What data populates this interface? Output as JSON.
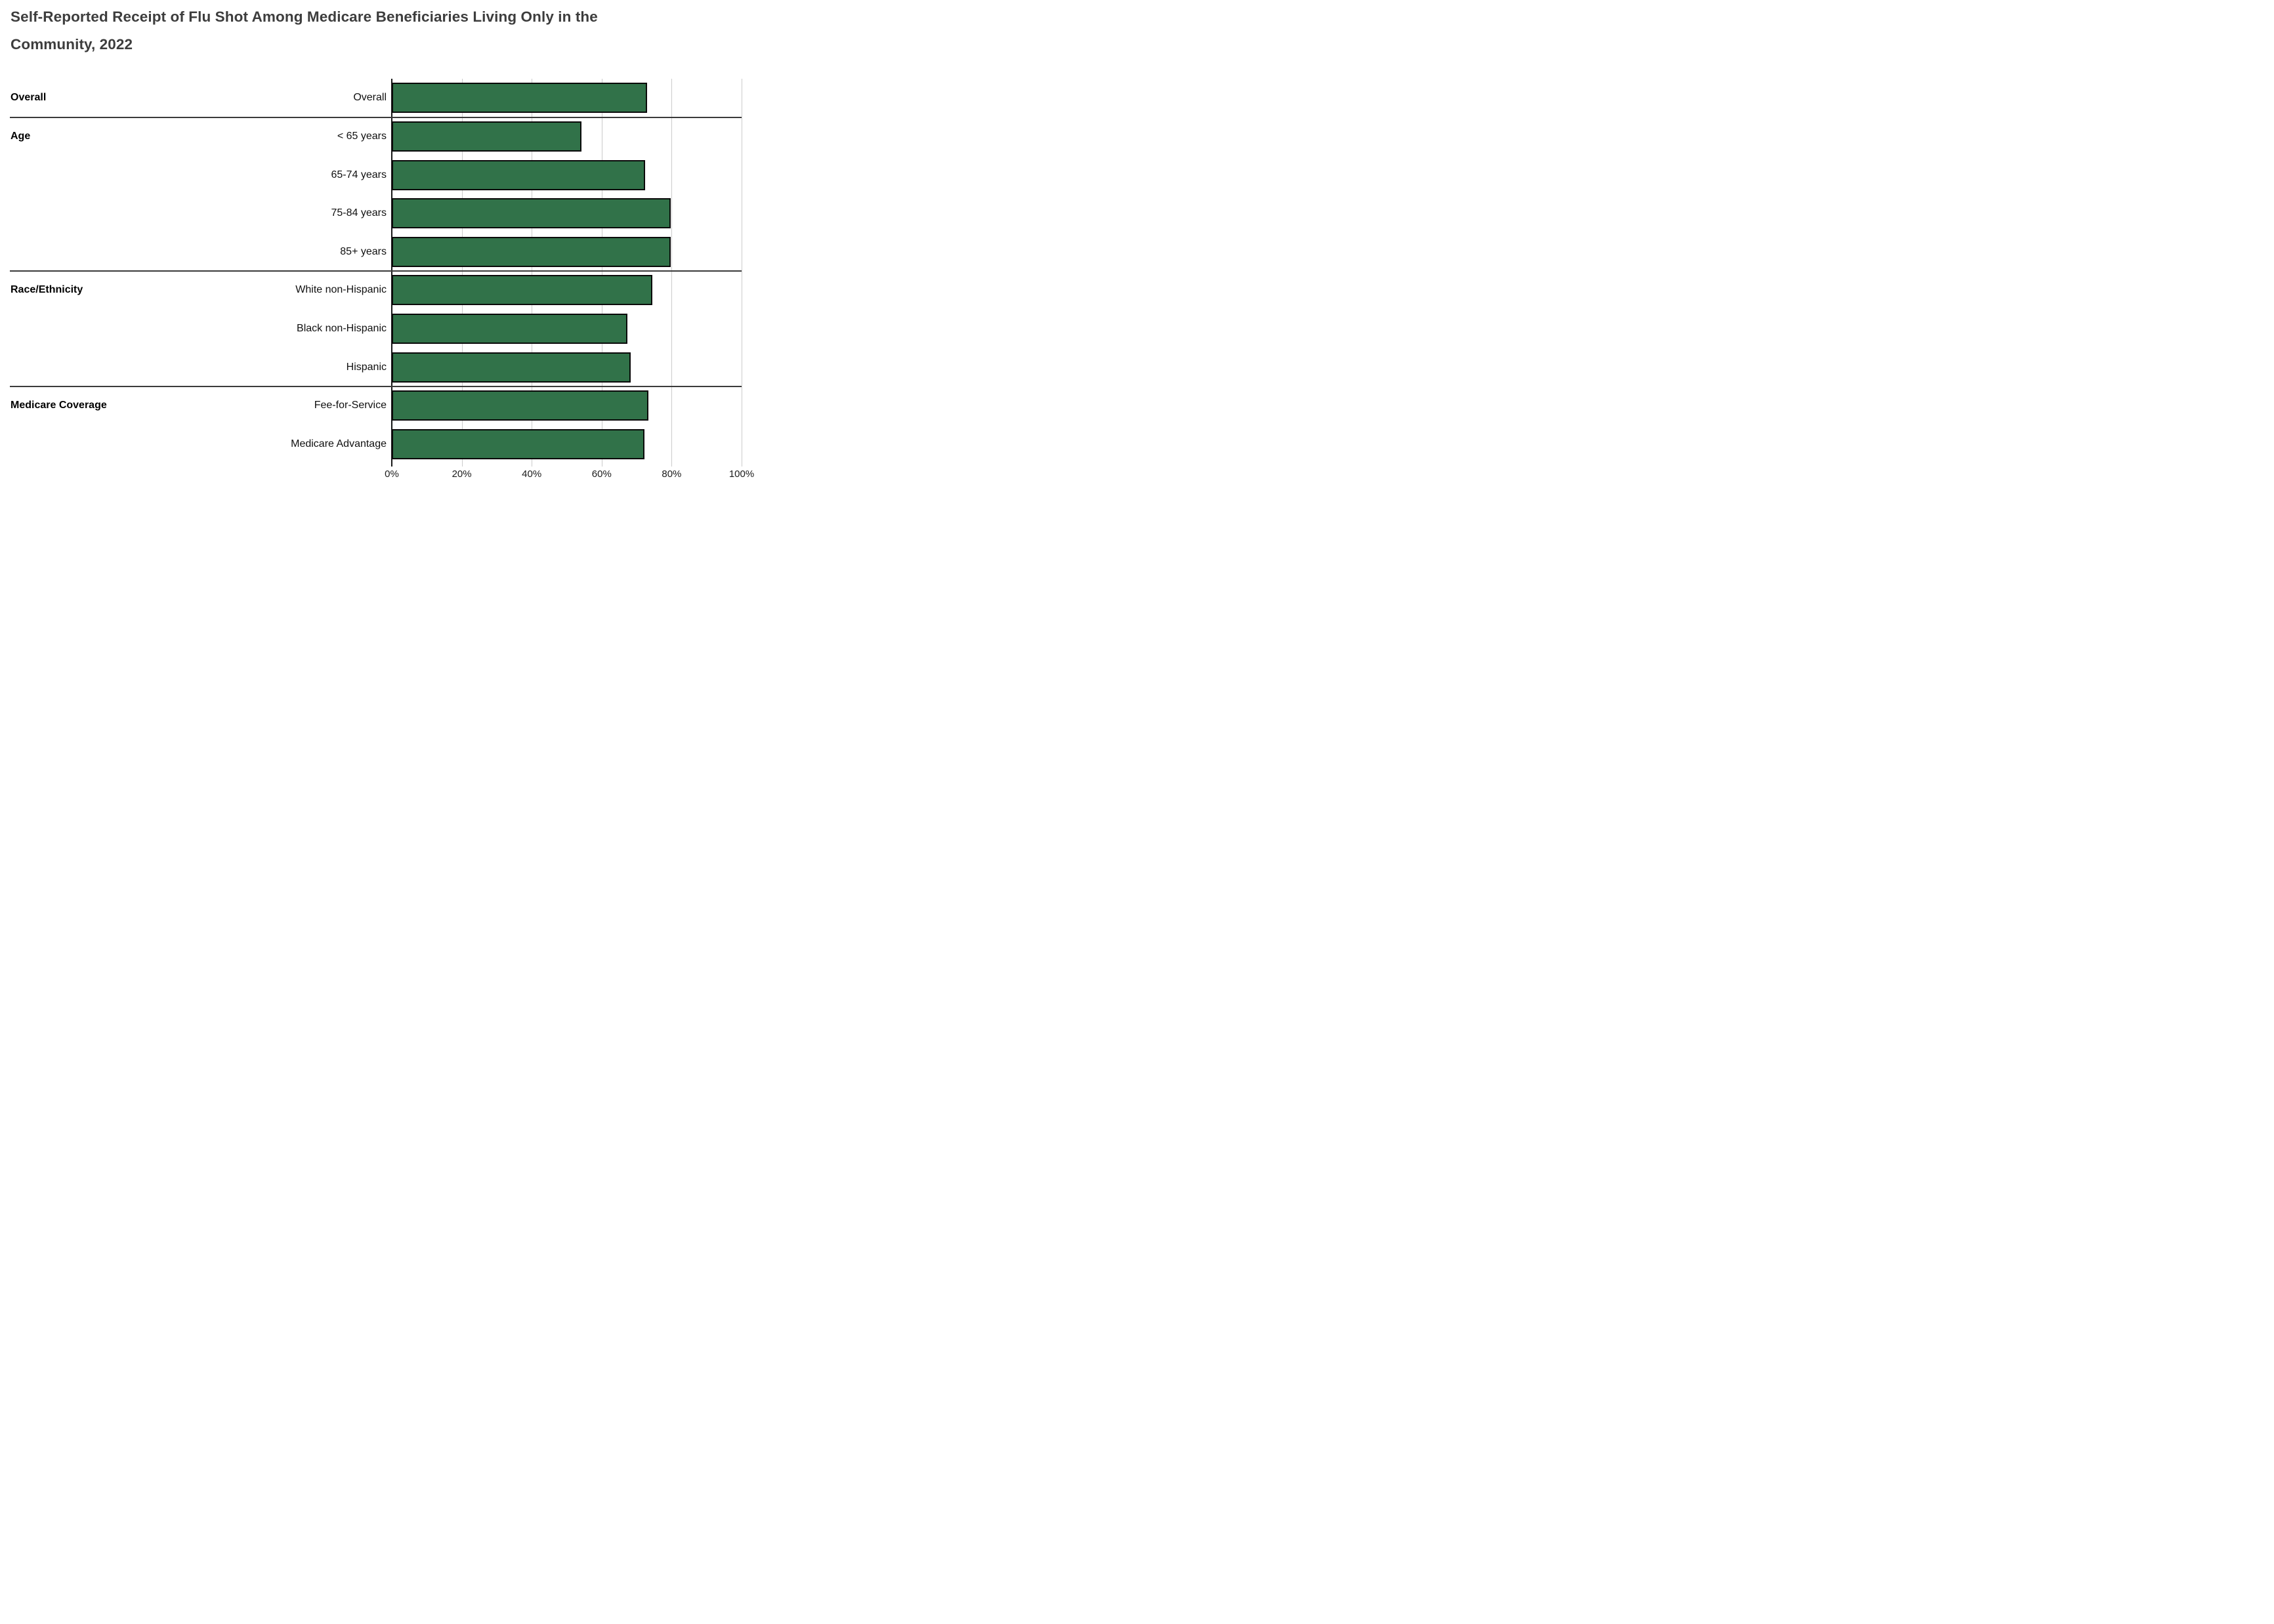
{
  "title": {
    "line1": "Self-Reported Receipt of Flu Shot Among Medicare Beneficiaries Living Only in the",
    "line2": "Community, 2022"
  },
  "chart_data": {
    "type": "bar",
    "orientation": "horizontal",
    "title": "Self-Reported Receipt of Flu Shot Among Medicare Beneficiaries Living Only in the Community, 2022",
    "unit": "percent",
    "xlim": [
      0,
      100
    ],
    "x_ticks": [
      "0%",
      "20%",
      "40%",
      "60%",
      "80%",
      "100%"
    ],
    "grid": true,
    "legend": false,
    "groups": [
      {
        "label": "Overall",
        "items": [
          {
            "label": "Overall",
            "value": 73.0
          }
        ]
      },
      {
        "label": "Age",
        "items": [
          {
            "label": "< 65 years",
            "value": 54.2
          },
          {
            "label": "65-74 years",
            "value": 72.4
          },
          {
            "label": "75-84 years",
            "value": 79.8
          },
          {
            "label": "85+ years",
            "value": 79.8
          }
        ]
      },
      {
        "label": "Race/Ethnicity",
        "items": [
          {
            "label": "White non-Hispanic",
            "value": 74.4
          },
          {
            "label": "Black non-Hispanic",
            "value": 67.3
          },
          {
            "label": "Hispanic",
            "value": 68.3
          }
        ]
      },
      {
        "label": "Medicare Coverage",
        "items": [
          {
            "label": "Fee-for-Service",
            "value": 73.4
          },
          {
            "label": "Medicare Advantage",
            "value": 72.3
          }
        ]
      }
    ],
    "categories": [
      "Overall",
      "< 65 years",
      "65-74 years",
      "75-84 years",
      "85+ years",
      "White non-Hispanic",
      "Black non-Hispanic",
      "Hispanic",
      "Fee-for-Service",
      "Medicare Advantage"
    ],
    "values": [
      73.0,
      54.2,
      72.4,
      79.8,
      79.8,
      74.4,
      67.3,
      68.3,
      73.4,
      72.3
    ]
  },
  "colors": {
    "bar_fill": "#317249",
    "bar_border": "#0A0A0A",
    "gridline": "#CBCBCB",
    "axis_line": "#161616",
    "separator": "#3A3A3A",
    "title_text": "#3D3D3D",
    "label_text": "#101010",
    "tick_text": "#1A1A1A",
    "background": "#FFFFFF"
  }
}
